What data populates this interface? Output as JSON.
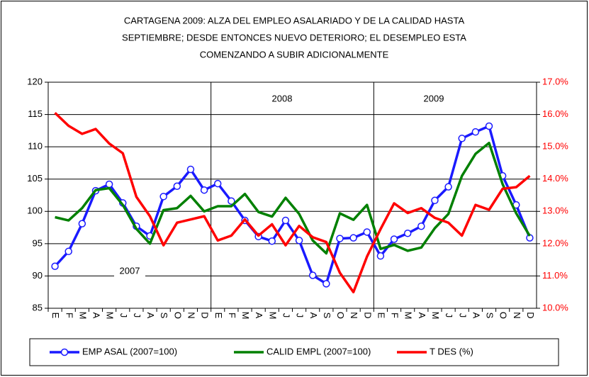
{
  "chart_data": {
    "type": "line",
    "title": [
      "CARTAGENA 2009: ALZA DEL EMPLEO ASALARIADO Y DE LA CALIDAD HASTA",
      "SEPTIEMBRE; DESDE ENTONCES NUEVO DETERIORO; EL DESEMPLEO ESTA",
      "COMENZANDO A SUBIR ADICIONALMENTE"
    ],
    "categories": [
      "E",
      "F",
      "M",
      "A",
      "M",
      "J",
      "J",
      "A",
      "S",
      "O",
      "N",
      "D",
      "E",
      "F",
      "M",
      "A",
      "M",
      "J",
      "J",
      "A",
      "S",
      "O",
      "N",
      "D",
      "E",
      "F",
      "M",
      "A",
      "M",
      "J",
      "J",
      "A",
      "S",
      "O",
      "N",
      "D"
    ],
    "annotations": [
      "2007",
      "2008",
      "2009"
    ],
    "series": [
      {
        "name": "EMP ASAL (2007=100)",
        "color": "#1a1aff",
        "marker": "circle",
        "values": [
          91.5,
          93.8,
          98.1,
          103.2,
          104.2,
          101.3,
          97.7,
          96.2,
          102.3,
          103.9,
          106.5,
          103.3,
          104.3,
          101.6,
          98.6,
          96.1,
          95.4,
          98.6,
          95.5,
          90.1,
          88.8,
          95.8,
          95.9,
          96.8,
          93.1,
          95.7,
          96.6,
          97.7,
          101.7,
          103.8,
          111.3,
          112.3,
          113.2,
          105.5,
          101.0,
          95.9
        ]
      },
      {
        "name": "CALID EMPL (2007=100)",
        "color": "#008000",
        "values": [
          99.1,
          98.6,
          100.5,
          103.3,
          103.6,
          101.0,
          97.3,
          95.0,
          100.2,
          100.5,
          102.4,
          100.0,
          100.8,
          100.8,
          102.7,
          99.9,
          99.2,
          102.1,
          99.6,
          95.5,
          93.5,
          99.7,
          98.7,
          101.0,
          94.2,
          94.8,
          93.9,
          94.4,
          97.4,
          99.6,
          105.5,
          108.9,
          110.6,
          104.2,
          99.7,
          96.2
        ]
      },
      {
        "name": "T DES (%)",
        "color": "#ff0000",
        "axis": "y2",
        "values": [
          16.05,
          15.65,
          15.4,
          15.55,
          15.1,
          14.8,
          13.45,
          12.85,
          11.95,
          12.65,
          12.75,
          12.85,
          12.1,
          12.25,
          12.75,
          12.25,
          12.6,
          11.95,
          12.55,
          12.2,
          12.05,
          11.1,
          10.5,
          11.6,
          12.45,
          13.25,
          12.95,
          13.1,
          12.8,
          12.65,
          12.25,
          13.2,
          13.05,
          13.7,
          13.75,
          14.1
        ]
      }
    ],
    "ylim": [
      85,
      120
    ],
    "yticks": [
      85,
      90,
      95,
      100,
      105,
      110,
      115,
      120
    ],
    "y2lim": [
      10,
      17
    ],
    "y2ticks": [
      {
        "value": 10,
        "label": "10.0%"
      },
      {
        "value": 11,
        "label": "11.0%"
      },
      {
        "value": 12,
        "label": "12.0%"
      },
      {
        "value": 13,
        "label": "13.0%"
      },
      {
        "value": 14,
        "label": "14.0%"
      },
      {
        "value": 15,
        "label": "15.0%"
      },
      {
        "value": 16,
        "label": "16.0%"
      },
      {
        "value": 17,
        "label": "17.0%"
      }
    ],
    "y2_color": "#ff0000",
    "grid": true,
    "legend": "bottom"
  }
}
